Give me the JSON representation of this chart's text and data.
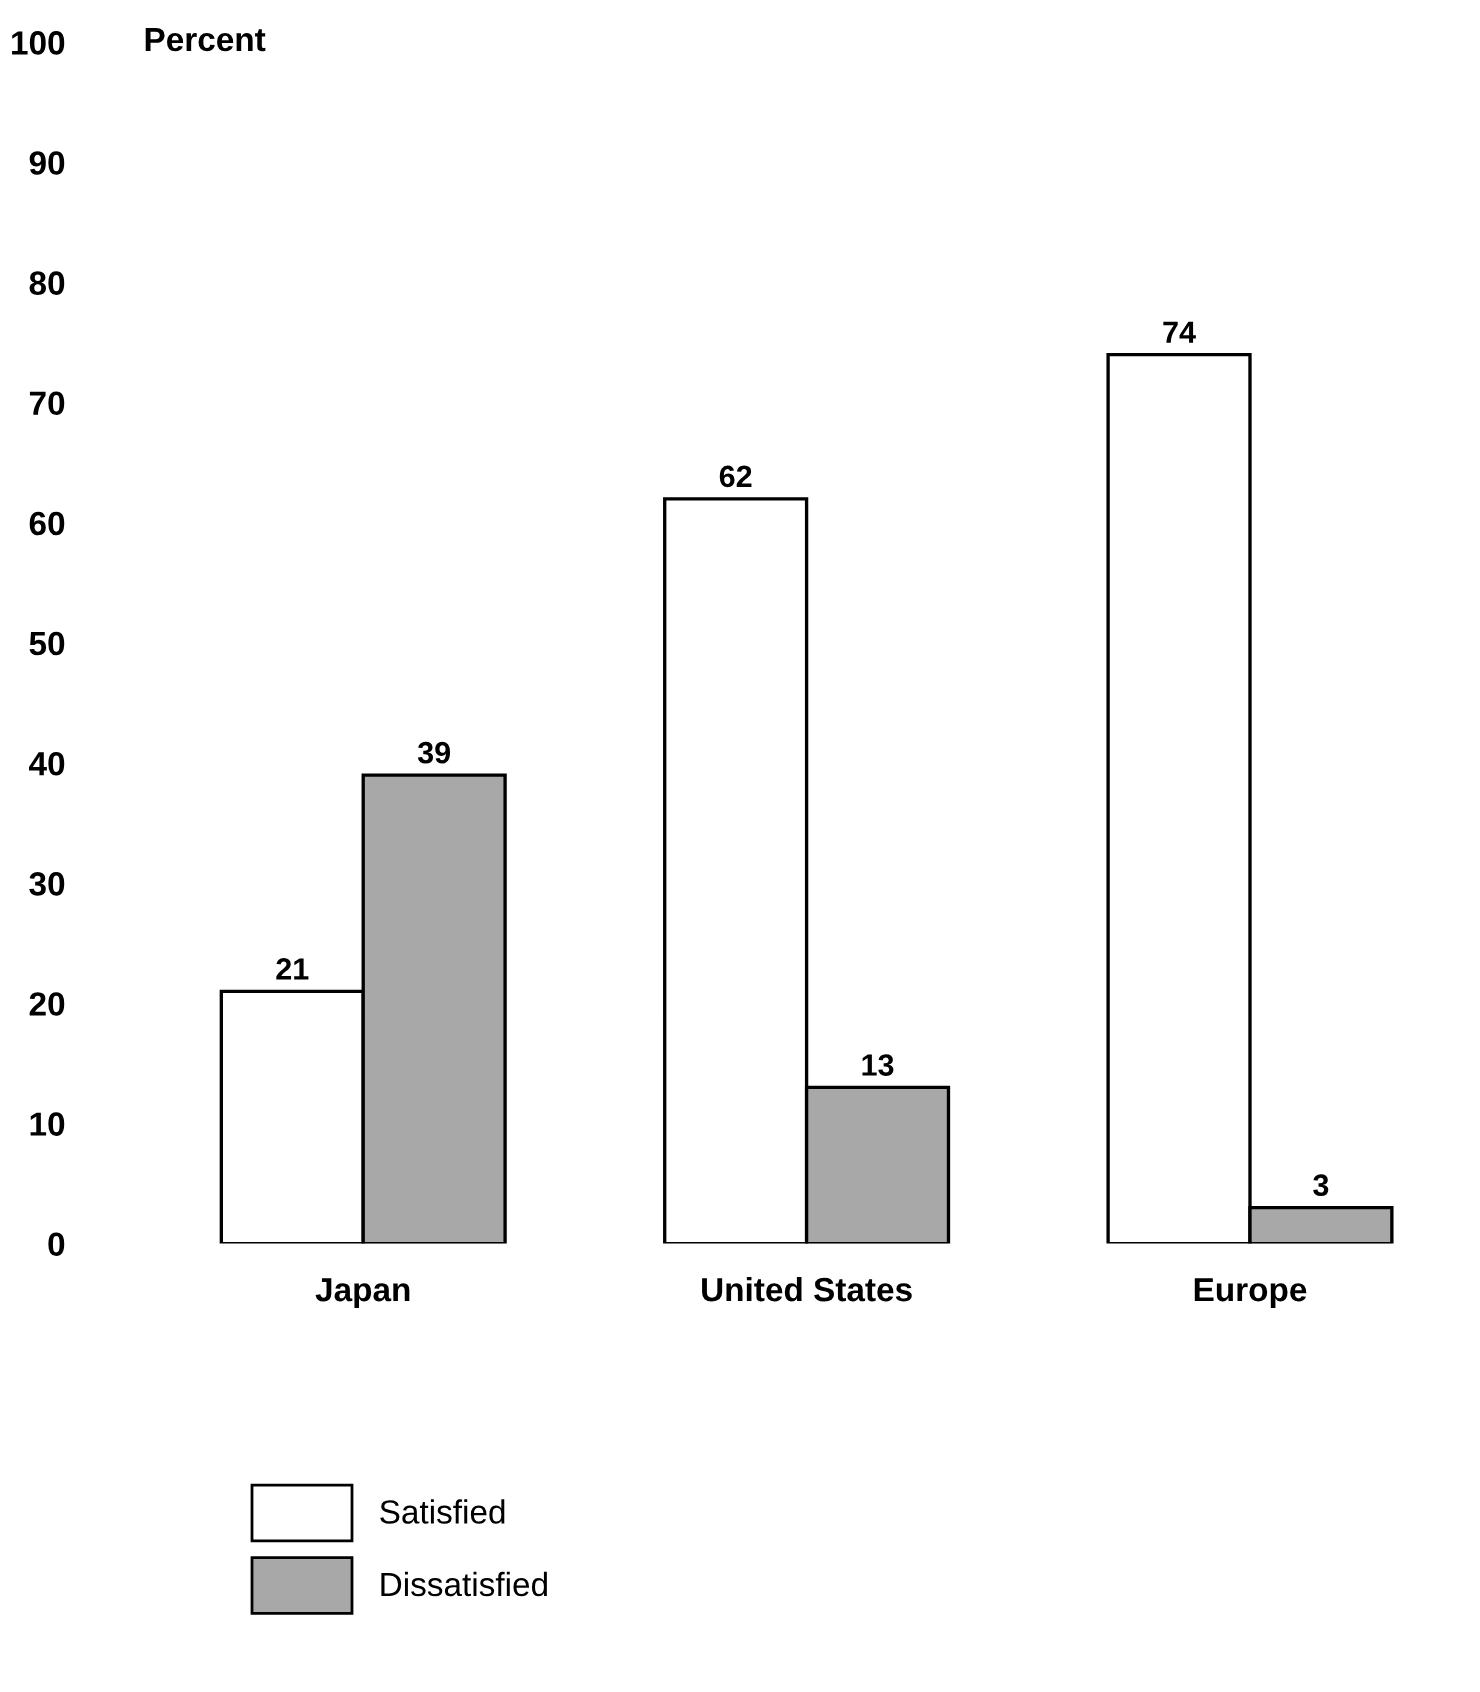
{
  "chart_data": {
    "type": "bar",
    "ylabel": "Percent",
    "categories": [
      "Japan",
      "United States",
      "Europe"
    ],
    "series": [
      {
        "name": "Satisfied",
        "color": "#ffffff",
        "values": [
          21,
          62,
          74
        ]
      },
      {
        "name": "Dissatisfied",
        "color": "#a8a8a8",
        "values": [
          39,
          13,
          3
        ]
      }
    ],
    "ylim": [
      0,
      100
    ],
    "yticks": [
      0,
      10,
      20,
      30,
      40,
      50,
      60,
      70,
      80,
      90,
      100
    ],
    "data_labels": true,
    "grid": false,
    "legend": "bottom left"
  }
}
